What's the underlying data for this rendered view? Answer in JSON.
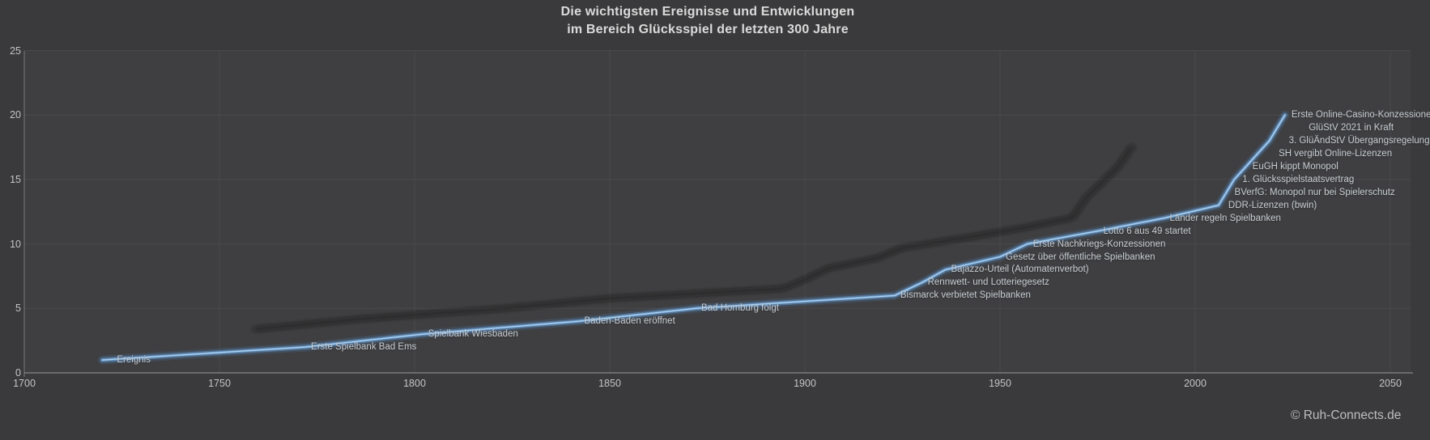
{
  "title": {
    "line1": "Die wichtigsten Ereignisse und Entwicklungen",
    "line2": "im Bereich Glücksspiel der letzten 300 Jahre"
  },
  "copyright": "© Ruh-Connects.de",
  "colors": {
    "background": "#3a3a3c",
    "plot_background": "#3f3f41",
    "gridline": "#4a4a4c",
    "x_axis": "#9a9b9d",
    "y_axis": "#77787a",
    "tick_label": "#c4c4c4",
    "data_label": "#c8cdd2",
    "title": "#dadada",
    "line_core": "#aecfea",
    "line_mid": "#6ca2d8",
    "line_glow": "#4a7bb0",
    "shadow": "#161616",
    "copyright": "#bdbdbd"
  },
  "chart_data": {
    "type": "line",
    "title": "Die wichtigsten Ereignisse und Entwicklungen im Bereich Glücksspiel der letzten 300 Jahre",
    "xlabel": "",
    "ylabel": "",
    "xlim": [
      1700,
      2050
    ],
    "ylim": [
      0,
      25
    ],
    "x_ticks": [
      1700,
      1750,
      1800,
      1850,
      1900,
      1950,
      2000,
      2050
    ],
    "y_ticks": [
      0,
      5,
      10,
      15,
      20,
      25
    ],
    "grid": true,
    "legend": "none",
    "series": [
      {
        "name": "Ereignis",
        "points": [
          {
            "year": 1720,
            "value": 1,
            "label": "Ereignis",
            "label_dx": 18
          },
          {
            "year": 1772,
            "value": 2,
            "label": "Erste Spielbank Bad Ems"
          },
          {
            "year": 1802,
            "value": 3,
            "label": "Spielbank Wiesbaden"
          },
          {
            "year": 1842,
            "value": 4,
            "label": "Baden-Baden eröffnet"
          },
          {
            "year": 1872,
            "value": 5,
            "label": "Bad Homburg folgt"
          },
          {
            "year": 1923,
            "value": 6,
            "label": "Bismarck verbietet Spielbanken"
          },
          {
            "year": 1930,
            "value": 7,
            "label": "Rennwett- und Lotteriegesetz"
          },
          {
            "year": 1936,
            "value": 8,
            "label": "Bajazzo-Urteil (Automatenverbot)"
          },
          {
            "year": 1950,
            "value": 9,
            "label": "Gesetz über öffentliche Spielbanken"
          },
          {
            "year": 1957,
            "value": 10,
            "label": "Erste Nachkriegs-Konzessionen"
          },
          {
            "year": 1975,
            "value": 11,
            "label": "Lotto 6 aus 49 startet"
          },
          {
            "year": 1992,
            "value": 12,
            "label": "Länder regeln Spielbanken"
          },
          {
            "year": 2006,
            "value": 13,
            "label": "DDR-Lizenzen (bwin)",
            "label_dx": 12
          },
          {
            "year": 2008,
            "value": 14,
            "label": "BVerfG: Monopol nur bei Spielerschutz",
            "label_dx": 10
          },
          {
            "year": 2010,
            "value": 15,
            "label": "1. Glücksspielstaatsvertrag",
            "label_dx": 10
          },
          {
            "year": 2013,
            "value": 16,
            "label": "EuGH kippt Monopol",
            "label_dx": 8
          },
          {
            "year": 2016,
            "value": 17,
            "label": "SH vergibt Online-Lizenzen",
            "label_dx": 26
          },
          {
            "year": 2019,
            "value": 18,
            "label": "3. GlüÄndStV Übergangsregelung",
            "label_dx": 24
          },
          {
            "year": 2021,
            "value": 19,
            "label": "GlüStV 2021 in Kraft",
            "label_dx": 39
          },
          {
            "year": 2023,
            "value": 20,
            "label": "Erste Online-Casino-Konzessionen",
            "label_dx": 8
          }
        ]
      }
    ]
  }
}
